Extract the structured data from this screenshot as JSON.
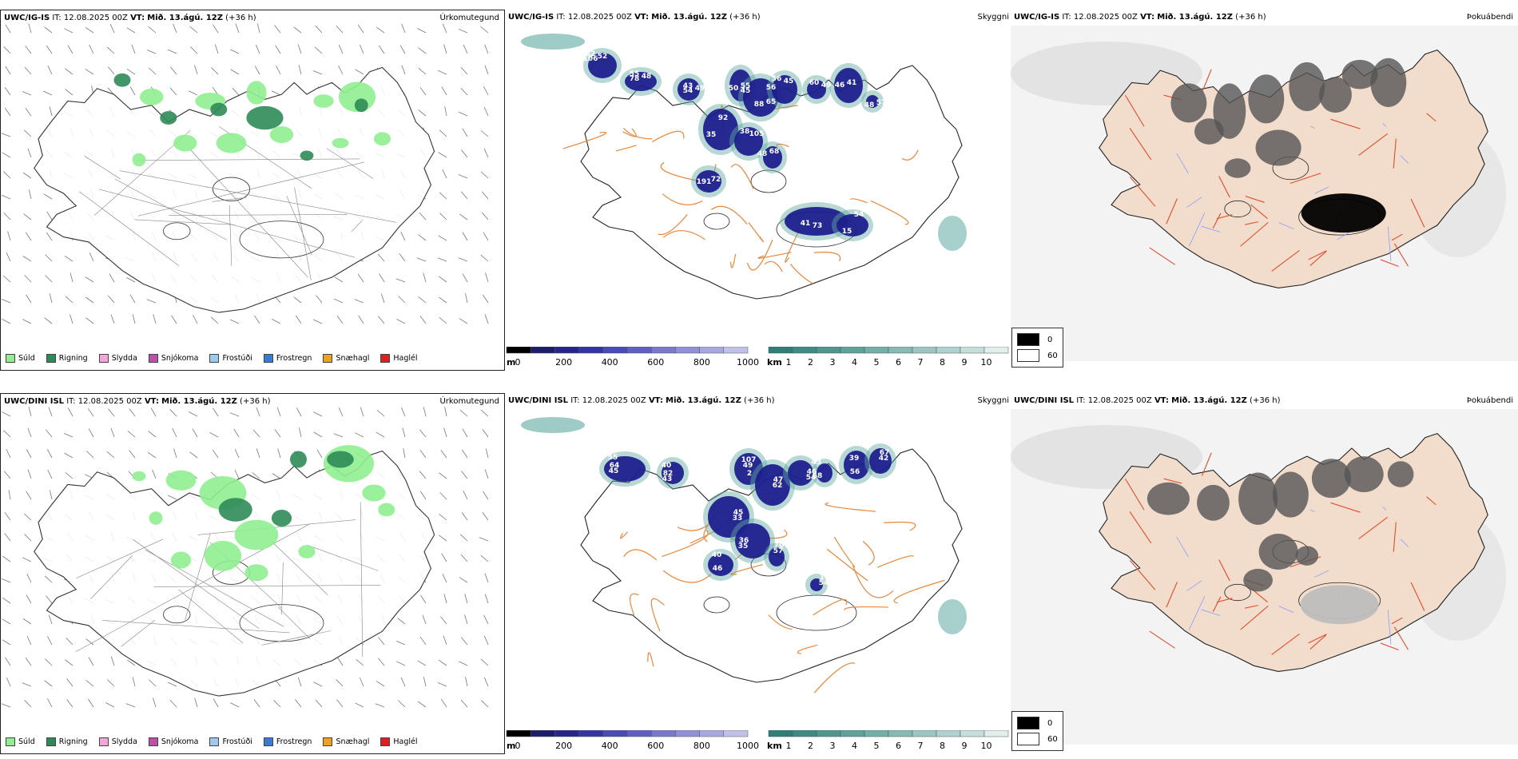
{
  "panels": [
    {
      "model": "UWC/IG-IS",
      "it_label": "IT:",
      "it": "12.08.2025 00Z",
      "vt_label": "VT:",
      "vt": "Mið. 13.ágú. 12Z",
      "lead": "(+36 h)",
      "product": "Úrkomutegund"
    },
    {
      "model": "UWC/IG-IS",
      "it_label": "IT:",
      "it": "12.08.2025 00Z",
      "vt_label": "VT:",
      "vt": "Mið. 13.ágú. 12Z",
      "lead": "(+36 h)",
      "product": "Skyggni"
    },
    {
      "model": "UWC/IG-IS",
      "it_label": "IT:",
      "it": "12.08.2025 00Z",
      "vt_label": "VT:",
      "vt": "Mið. 13.ágú. 12Z",
      "lead": "(+36 h)",
      "product": "Þokuábendi"
    },
    {
      "model": "UWC/DINI ISL",
      "it_label": "IT:",
      "it": "12.08.2025 00Z",
      "vt_label": "VT:",
      "vt": "Mið. 13.ágú. 12Z",
      "lead": "(+36 h)",
      "product": "Úrkomutegund"
    },
    {
      "model": "UWC/DINI ISL",
      "it_label": "IT:",
      "it": "12.08.2025 00Z",
      "vt_label": "VT:",
      "vt": "Mið. 13.ágú. 12Z",
      "lead": "(+36 h)",
      "product": "Skyggni"
    },
    {
      "model": "UWC/DINI ISL",
      "it_label": "IT:",
      "it": "12.08.2025 00Z",
      "vt_label": "VT:",
      "vt": "Mið. 13.ágú. 12Z",
      "lead": "(+36 h)",
      "product": "Þokuábendi"
    }
  ],
  "precip_legend": [
    {
      "label": "Súld",
      "color": "#90ee90"
    },
    {
      "label": "Rigning",
      "color": "#2e8b57"
    },
    {
      "label": "Slydda",
      "color": "#f4a6d7"
    },
    {
      "label": "Snjókoma",
      "color": "#c04fa8"
    },
    {
      "label": "Frostúði",
      "color": "#9ec9f0"
    },
    {
      "label": "Frostregn",
      "color": "#3a7bd5"
    },
    {
      "label": "Snæhagl",
      "color": "#f0a020"
    },
    {
      "label": "Haglél",
      "color": "#e02020"
    }
  ],
  "vis_m": {
    "unit": "m",
    "ticks": [
      "0",
      "200",
      "400",
      "600",
      "800",
      "1000"
    ]
  },
  "vis_km": {
    "unit": "km",
    "ticks": [
      "1",
      "2",
      "3",
      "4",
      "5",
      "6",
      "7",
      "8",
      "9",
      "10"
    ]
  },
  "fog_key": {
    "low": "0",
    "high": "60"
  },
  "vis_labels_top": [
    "62",
    "55",
    "43",
    "55",
    "65",
    "56",
    "60",
    "41",
    "57",
    "35",
    "38",
    "68",
    "72",
    "41",
    "15",
    "52",
    "48",
    "49",
    "50",
    "88",
    "45",
    "49",
    "46",
    "48",
    "92",
    "105",
    "48",
    "191",
    "73",
    "54",
    "106",
    "78",
    "54",
    "45",
    "56"
  ],
  "vis_labels_bottom": [
    "55",
    "40",
    "49",
    "62",
    "54",
    "43",
    "39",
    "42",
    "33",
    "35",
    "40",
    "57",
    "54",
    "45",
    "43",
    "107",
    "47",
    "46",
    "68",
    "56",
    "67",
    "45",
    "36",
    "46",
    "70",
    "13",
    "64",
    "82",
    "2"
  ],
  "colors": {
    "rain": "#2e8b57",
    "drizzle": "#90ee90",
    "vis_dark": "#1a1a8c",
    "vis_teal": "#5fa8a0",
    "roads": "#e8873a",
    "land_fog": "#f2dccb",
    "fog_roads": "#e05030",
    "rivers": "#8aa0ff"
  }
}
